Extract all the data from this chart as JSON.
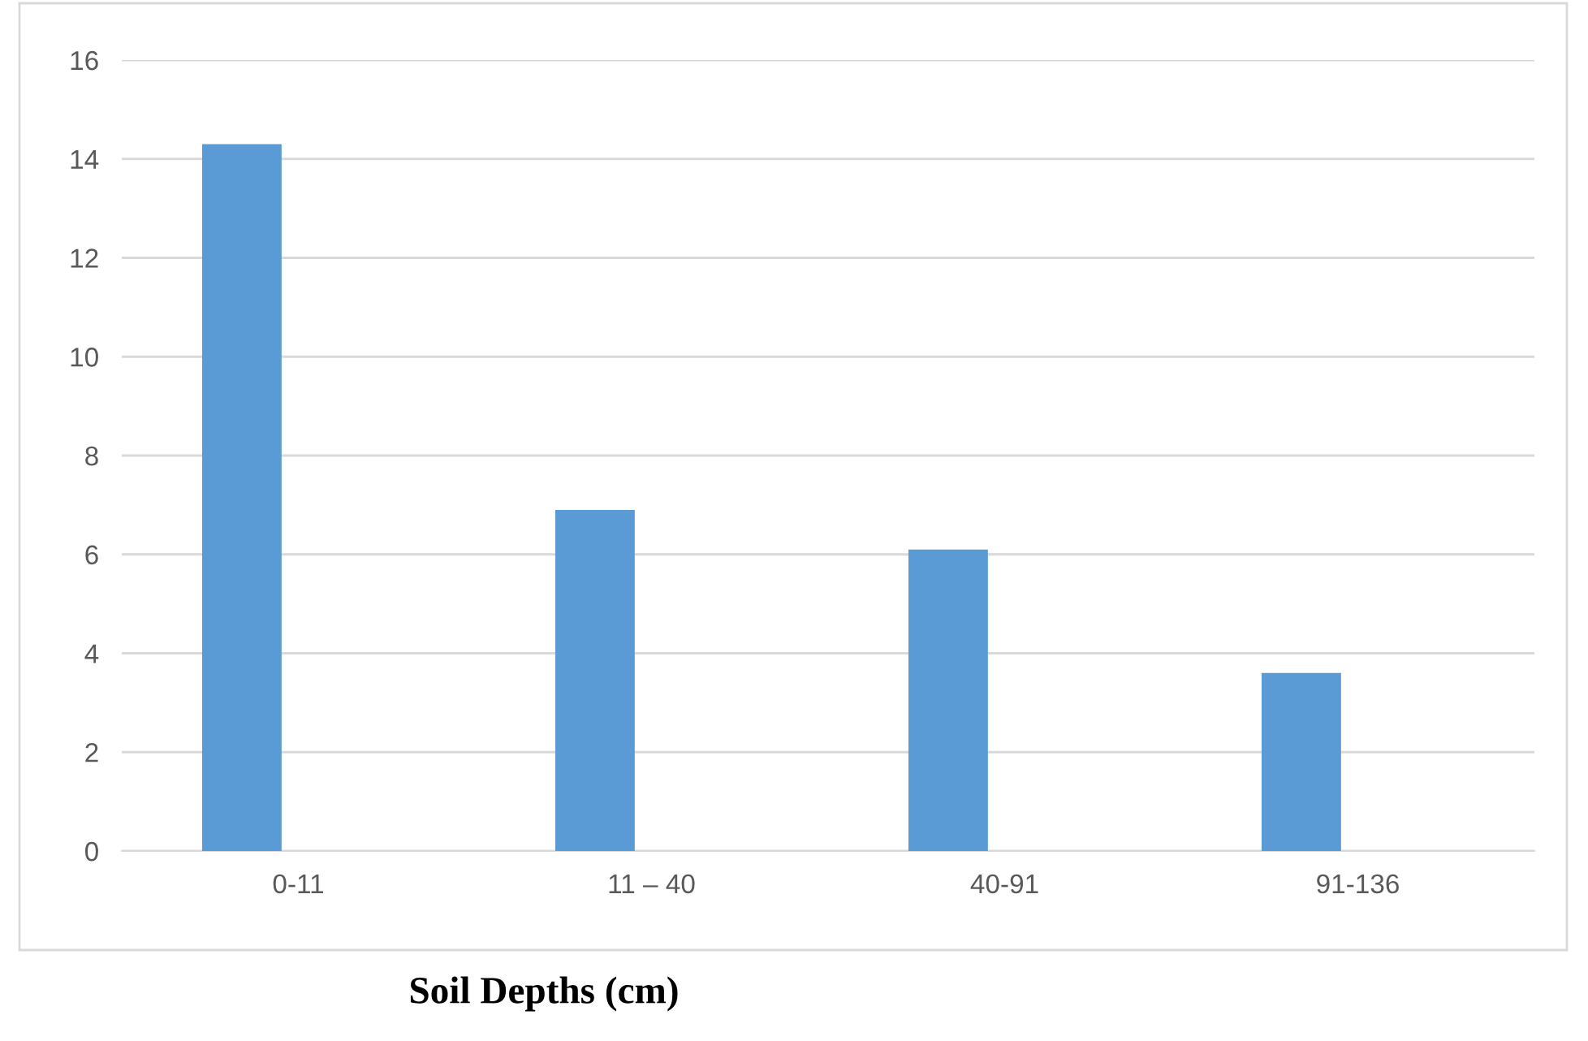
{
  "chart_data": {
    "type": "bar",
    "xlabel": "Soil Depths (cm)",
    "categories": [
      "0-11",
      "11 – 40",
      "40-91",
      "91-136"
    ],
    "values": [
      14.3,
      6.9,
      6.1,
      3.6
    ],
    "color": "#5b9bd5",
    "ylim": [
      0,
      16
    ],
    "yticks": [
      0,
      2,
      4,
      6,
      8,
      10,
      12,
      14,
      16
    ],
    "grid": "y",
    "legend": false
  }
}
